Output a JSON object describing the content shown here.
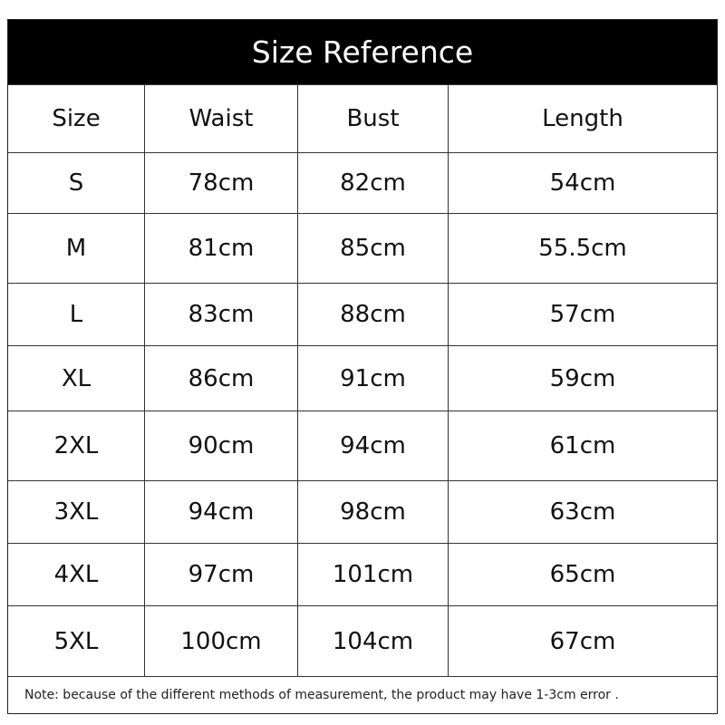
{
  "title": "Size Reference",
  "headers": [
    "Size",
    "Waist",
    "Bust",
    "Length"
  ],
  "rows": [
    [
      "S",
      "78cm",
      "82cm",
      "54cm"
    ],
    [
      "M",
      "81cm",
      "85cm",
      "55.5cm"
    ],
    [
      "L",
      "83cm",
      "88cm",
      "57cm"
    ],
    [
      "XL",
      "86cm",
      "91cm",
      "59cm"
    ],
    [
      "2XL",
      "90cm",
      "94cm",
      "61cm"
    ],
    [
      "3XL",
      "94cm",
      "98cm",
      "63cm"
    ],
    [
      "4XL",
      "97cm",
      "101cm",
      "65cm"
    ],
    [
      "5XL",
      "100cm",
      "104cm",
      "67cm"
    ]
  ],
  "note": "Note: because of the different methods of measurement, the product may have 1-3cm error ."
}
